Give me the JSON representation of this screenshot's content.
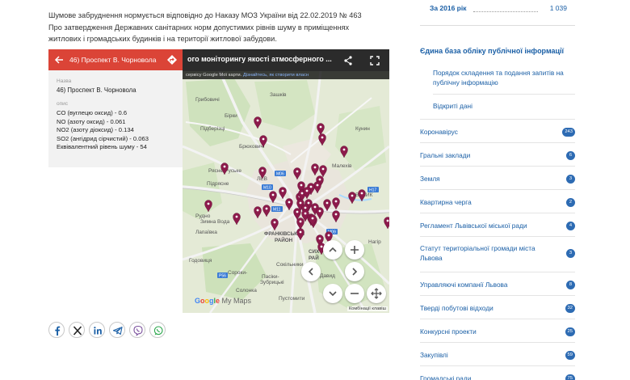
{
  "article": {
    "intro": "Шумове забруднення нормується відповідно до Наказу МОЗ України від 22.02.2019 № 463 Про затвердження Державних санітарних норм допустимих рівнів шуму в приміщеннях житлових і громадських будинків і на території житлової забудови."
  },
  "map": {
    "title": "ого моніторингу якості атмосферного ...",
    "notice_text": "сервісу Google Мої карти. ",
    "notice_link": "Дізнайтесь, як створити власн",
    "shortcuts_label": "Комбінації клавіш",
    "google_g1": "G",
    "google_g2": "o",
    "google_g3": "o",
    "google_g4": "g",
    "google_g5": "l",
    "google_g6": "e",
    "google_maps": " My Maps",
    "panel": {
      "title": "46) Проспект В. Чорновола",
      "name_label": "Назва",
      "name_value": "46) Проспект В. Чорновола",
      "desc_label": "опис",
      "desc_lines": [
        "CO (вуглецю оксид) - 0.6",
        "NO (азоту оксид) - 0.061",
        "NO2 (азоту діоксид) - 0.134",
        "SO2 (ангідрид сірчистий) - 0.063",
        "Еквівалентний рівень шуму - 54"
      ]
    },
    "labels": {
      "l1": "Зашків",
      "l2": "Грибовичі",
      "l3": "Бірки",
      "l4": "Брюховичі",
      "l5": "Малехів",
      "l6": "Рясне-Руське",
      "l7": "Підрясне",
      "l8": "Рудно",
      "l9": "Зимна Вода",
      "l10": "ВЕЛИК",
      "l11": "ФРАНКІВСЬКИЙ",
      "l12": "РАЙОН",
      "l13": "СИХ",
      "l14": "РАЙ",
      "l15": "Сокільники",
      "l16": "Пасіки-",
      "l17": "Зубрицькі",
      "l18": "Сороки-",
      "l19": "Годовиця",
      "l20": "Солонка",
      "l21": "Давид",
      "l22": "Пустомити",
      "l23": "Підберізці",
      "l24": "Лапаївка",
      "l25": "Кунин",
      "l26": "Нагір",
      "l27": "ЛЕВ"
    },
    "roads": {
      "r1": "M10",
      "r2": "M06",
      "r3": "M11",
      "r4": "M09",
      "r5": "H17",
      "r6": "P56"
    }
  },
  "share": {
    "buttons": [
      "facebook-icon",
      "x-icon",
      "linkedin-icon",
      "telegram-icon",
      "viber-icon",
      "whatsapp-icon"
    ]
  },
  "sidebar": {
    "year_label": "За 2016 рік",
    "year_value": "1 039",
    "db_title": "Єдина база обліку публічної інформації",
    "sub_items": [
      "Порядок складення та подання запитів на публічну інформацію",
      "Відкриті дані"
    ],
    "categories": [
      {
        "label": "Коронавірус",
        "count": "243"
      },
      {
        "label": "Гральні заклади",
        "count": "6"
      },
      {
        "label": "Земля",
        "count": "3"
      },
      {
        "label": "Квартирна черга",
        "count": "2"
      },
      {
        "label": "Регламент Львівської міської ради",
        "count": "4"
      },
      {
        "label": "Статут територіальної громади міста Львова",
        "count": "3"
      },
      {
        "label": "Управляючі компанії Львова",
        "count": "8"
      },
      {
        "label": "Тверді побутові відходи",
        "count": "32"
      },
      {
        "label": "Конкурсні проекти",
        "count": "25"
      },
      {
        "label": "Закупівлі",
        "count": "59"
      },
      {
        "label": "Громадські ради",
        "count": "75"
      }
    ]
  },
  "colors": {
    "accent": "#1a5fa6",
    "badge": "#2d6bb3",
    "panel_header": "#db4437",
    "marker": "#8c1a4b"
  }
}
